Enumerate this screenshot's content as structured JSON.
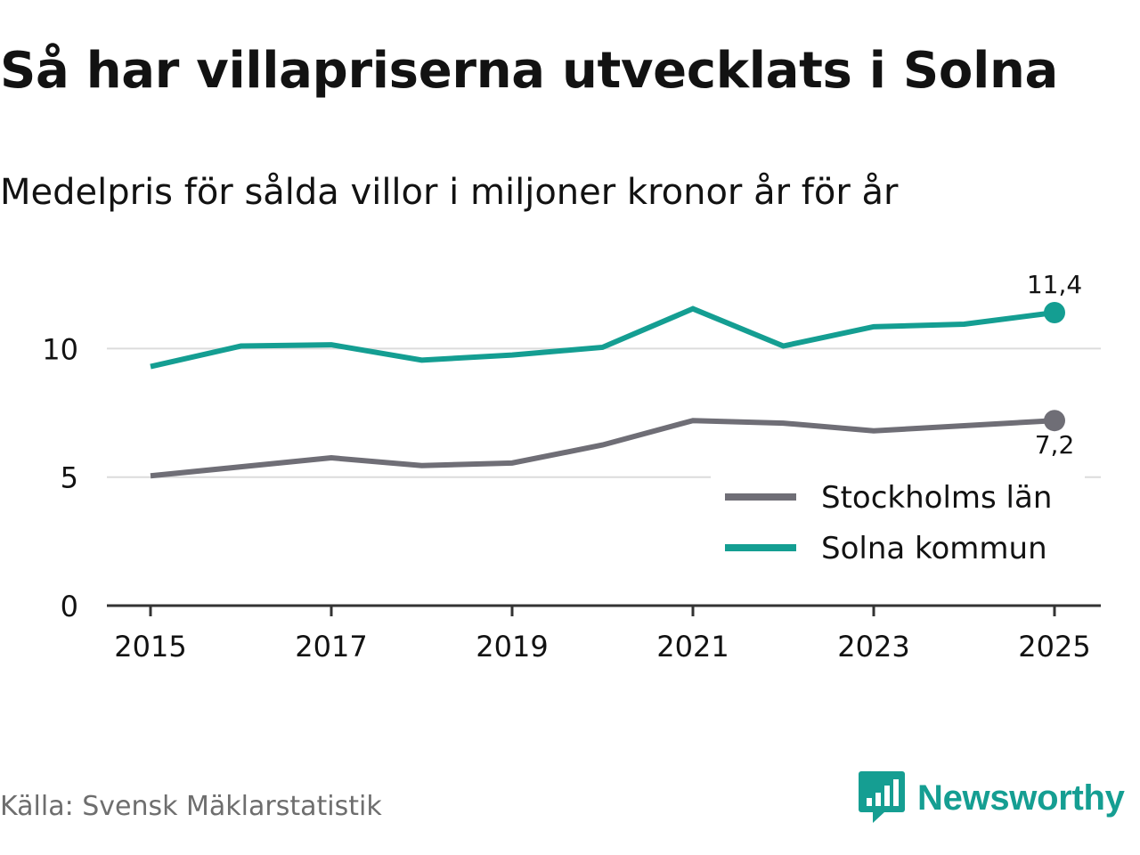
{
  "title": "Så har villapriserna utvecklats i Solna",
  "subtitle": "Medelpris för sålda villor i miljoner kronor år för år",
  "source": "Källa: Svensk Mäklarstatistik",
  "brand": {
    "name": "Newsworthy",
    "logo_icon": "bar-chart-speech-bubble-icon",
    "color": "#159e92"
  },
  "colors": {
    "solna": "#149e92",
    "stockholm": "#6f6e76",
    "grid": "#dcdcdc",
    "axis": "#333333"
  },
  "chart_data": {
    "type": "line",
    "title": "Så har villapriserna utvecklats i Solna",
    "subtitle": "Medelpris för sålda villor i miljoner kronor år för år",
    "xlabel": "",
    "ylabel": "",
    "x": [
      2015,
      2016,
      2017,
      2018,
      2019,
      2020,
      2021,
      2022,
      2023,
      2024,
      2025
    ],
    "xlim": [
      2015,
      2025
    ],
    "ylim": [
      0,
      11.4
    ],
    "y_ticks": [
      "0",
      "5",
      "10"
    ],
    "x_ticks": [
      "2015",
      "2017",
      "2019",
      "2021",
      "2023",
      "2025"
    ],
    "grid": true,
    "legend_position": "bottom-right",
    "series": [
      {
        "name": "Stockholms län",
        "color": "#6f6e76",
        "values": [
          5.05,
          5.4,
          5.75,
          5.45,
          5.55,
          6.25,
          7.2,
          7.1,
          6.8,
          7.0,
          7.2
        ],
        "end_label": "7,2"
      },
      {
        "name": "Solna kommun",
        "color": "#149e92",
        "values": [
          9.3,
          10.1,
          10.15,
          9.55,
          9.75,
          10.05,
          11.55,
          10.1,
          10.85,
          10.95,
          11.4
        ],
        "end_label": "11,4"
      }
    ]
  }
}
